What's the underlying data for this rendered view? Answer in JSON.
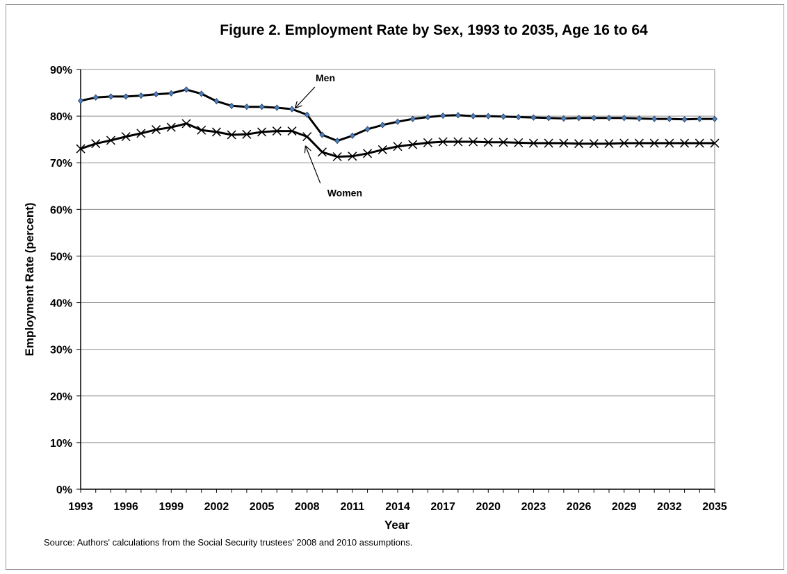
{
  "chart_data": {
    "type": "line",
    "title": "Figure 2. Employment Rate by Sex, 1993 to 2035, Age 16 to 64",
    "xlabel": "Year",
    "ylabel": "Employment Rate (percent)",
    "ylim": [
      0,
      90
    ],
    "y_ticks": [
      "0%",
      "10%",
      "20%",
      "30%",
      "40%",
      "50%",
      "60%",
      "70%",
      "80%",
      "90%"
    ],
    "x_ticks": [
      "1993",
      "1996",
      "1999",
      "2002",
      "2005",
      "2008",
      "2011",
      "2014",
      "2017",
      "2020",
      "2023",
      "2026",
      "2029",
      "2032",
      "2035"
    ],
    "grid": "horizontal",
    "x": [
      1993,
      1994,
      1995,
      1996,
      1997,
      1998,
      1999,
      2000,
      2001,
      2002,
      2003,
      2004,
      2005,
      2006,
      2007,
      2008,
      2009,
      2010,
      2011,
      2012,
      2013,
      2014,
      2015,
      2016,
      2017,
      2018,
      2019,
      2020,
      2021,
      2022,
      2023,
      2024,
      2025,
      2026,
      2027,
      2028,
      2029,
      2030,
      2031,
      2032,
      2033,
      2034,
      2035
    ],
    "series": [
      {
        "name": "Men",
        "marker": "diamond",
        "values": [
          83.3,
          84.0,
          84.2,
          84.2,
          84.4,
          84.7,
          84.9,
          85.7,
          84.8,
          83.2,
          82.2,
          82.0,
          82.0,
          81.8,
          81.5,
          80.3,
          76.0,
          74.7,
          75.8,
          77.2,
          78.1,
          78.8,
          79.4,
          79.8,
          80.1,
          80.2,
          80.0,
          80.0,
          79.9,
          79.8,
          79.7,
          79.6,
          79.5,
          79.6,
          79.6,
          79.6,
          79.6,
          79.5,
          79.4,
          79.4,
          79.3,
          79.4,
          79.4
        ]
      },
      {
        "name": "Women",
        "marker": "x",
        "values": [
          73.0,
          74.1,
          74.8,
          75.6,
          76.3,
          77.1,
          77.6,
          78.4,
          77.0,
          76.6,
          76.0,
          76.1,
          76.6,
          76.8,
          76.8,
          75.6,
          72.3,
          71.3,
          71.4,
          72.0,
          72.8,
          73.5,
          73.9,
          74.3,
          74.5,
          74.5,
          74.5,
          74.4,
          74.4,
          74.3,
          74.2,
          74.2,
          74.2,
          74.1,
          74.1,
          74.1,
          74.2,
          74.2,
          74.2,
          74.2,
          74.2,
          74.2,
          74.2
        ]
      }
    ],
    "annotations": [
      {
        "text": "Men",
        "points_to_series": "Men",
        "x": 2007
      },
      {
        "text": "Women",
        "points_to_series": "Women",
        "x": 2008
      }
    ],
    "source": "Source: Authors' calculations from the Social Security trustees' 2008 and 2010 assumptions."
  }
}
